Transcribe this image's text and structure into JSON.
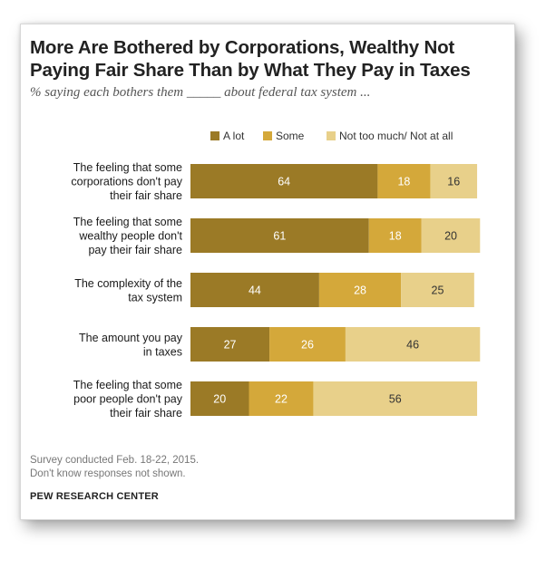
{
  "title_line1": "More Are Bothered by Corporations, Wealthy Not",
  "title_line2": "Paying Fair Share Than by What They Pay in Taxes",
  "subtitle": "% saying each bothers them _____ about federal tax system ...",
  "notes": [
    "Survey conducted Feb. 18-22, 2015.",
    "Don't know responses not shown."
  ],
  "source": "PEW RESEARCH CENTER",
  "colors": {
    "a_lot": "#9b7a26",
    "some": "#d4a83a",
    "not_much": "#e8d08a"
  },
  "chart_data": {
    "type": "bar",
    "orientation": "horizontal",
    "stacked": true,
    "title": "More Are Bothered by Corporations, Wealthy Not Paying Fair Share Than by What They Pay in Taxes",
    "subtitle": "% saying each bothers them _____ about federal tax system ...",
    "categories": [
      [
        "The feeling that some",
        "corporations don't pay",
        "their fair share"
      ],
      [
        "The feeling that some",
        "wealthy people don't",
        "pay their fair share"
      ],
      [
        "The complexity of the",
        "tax system"
      ],
      [
        "The amount you pay",
        "in taxes"
      ],
      [
        "The feeling that some",
        "poor people don't pay",
        "their fair share"
      ]
    ],
    "series": [
      {
        "name": "A lot",
        "values": [
          64,
          61,
          44,
          27,
          20
        ]
      },
      {
        "name": "Some",
        "values": [
          18,
          18,
          28,
          26,
          22
        ]
      },
      {
        "name": "Not too much/ Not at all",
        "values": [
          16,
          20,
          25,
          46,
          56
        ]
      }
    ],
    "legend": "top",
    "xlim": [
      0,
      100
    ]
  }
}
